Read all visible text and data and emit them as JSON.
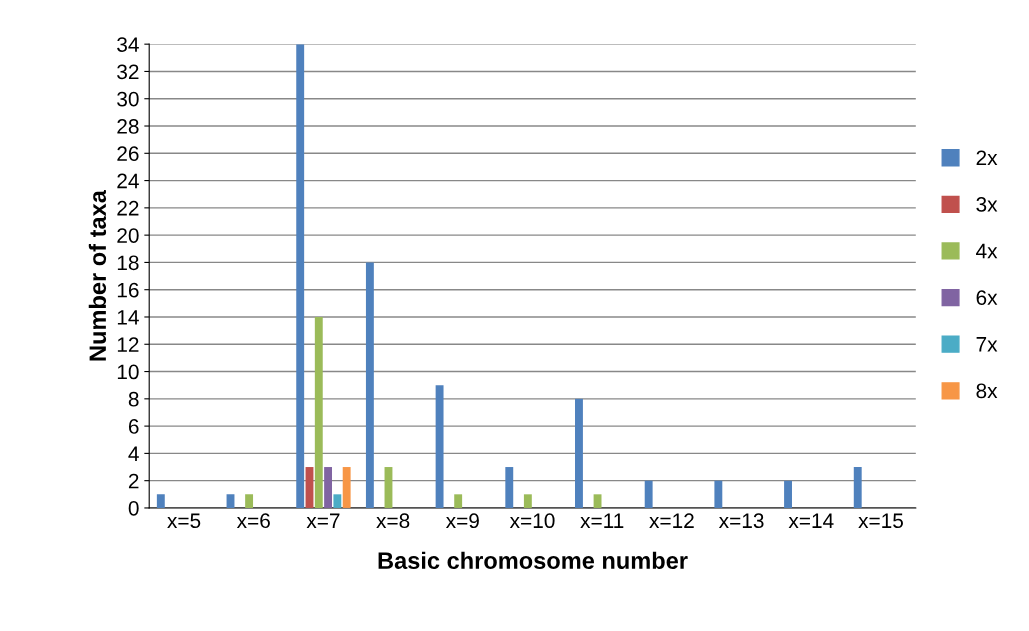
{
  "chart_data": {
    "type": "bar",
    "xlabel": "Basic chromosome number",
    "ylabel": "Number of taxa",
    "categories": [
      "x=5",
      "x=6",
      "x=7",
      "x=8",
      "x=9",
      "x=10",
      "x=11",
      "x=12",
      "x=13",
      "x=14",
      "x=15"
    ],
    "series": [
      {
        "name": "2x",
        "color": "#4f81bd",
        "values": [
          1,
          1,
          34,
          18,
          9,
          3,
          8,
          2,
          2,
          2,
          3
        ]
      },
      {
        "name": "3x",
        "color": "#c0504d",
        "values": [
          0,
          0,
          3,
          0,
          0,
          0,
          0,
          0,
          0,
          0,
          0
        ]
      },
      {
        "name": "4x",
        "color": "#9bbb59",
        "values": [
          0,
          1,
          14,
          3,
          1,
          1,
          1,
          0,
          0,
          0,
          0
        ]
      },
      {
        "name": "6x",
        "color": "#8064a2",
        "values": [
          0,
          0,
          3,
          0,
          0,
          0,
          0,
          0,
          0,
          0,
          0
        ]
      },
      {
        "name": "7x",
        "color": "#4bacc6",
        "values": [
          0,
          0,
          1,
          0,
          0,
          0,
          0,
          0,
          0,
          0,
          0
        ]
      },
      {
        "name": "8x",
        "color": "#f79646",
        "values": [
          0,
          0,
          3,
          0,
          0,
          0,
          0,
          0,
          0,
          0,
          0
        ]
      }
    ],
    "ylim": [
      0,
      34
    ],
    "yticks": [
      0,
      2,
      4,
      6,
      8,
      10,
      12,
      14,
      16,
      18,
      20,
      22,
      24,
      26,
      28,
      30,
      32,
      34
    ],
    "grid": "y",
    "legend": "right"
  }
}
